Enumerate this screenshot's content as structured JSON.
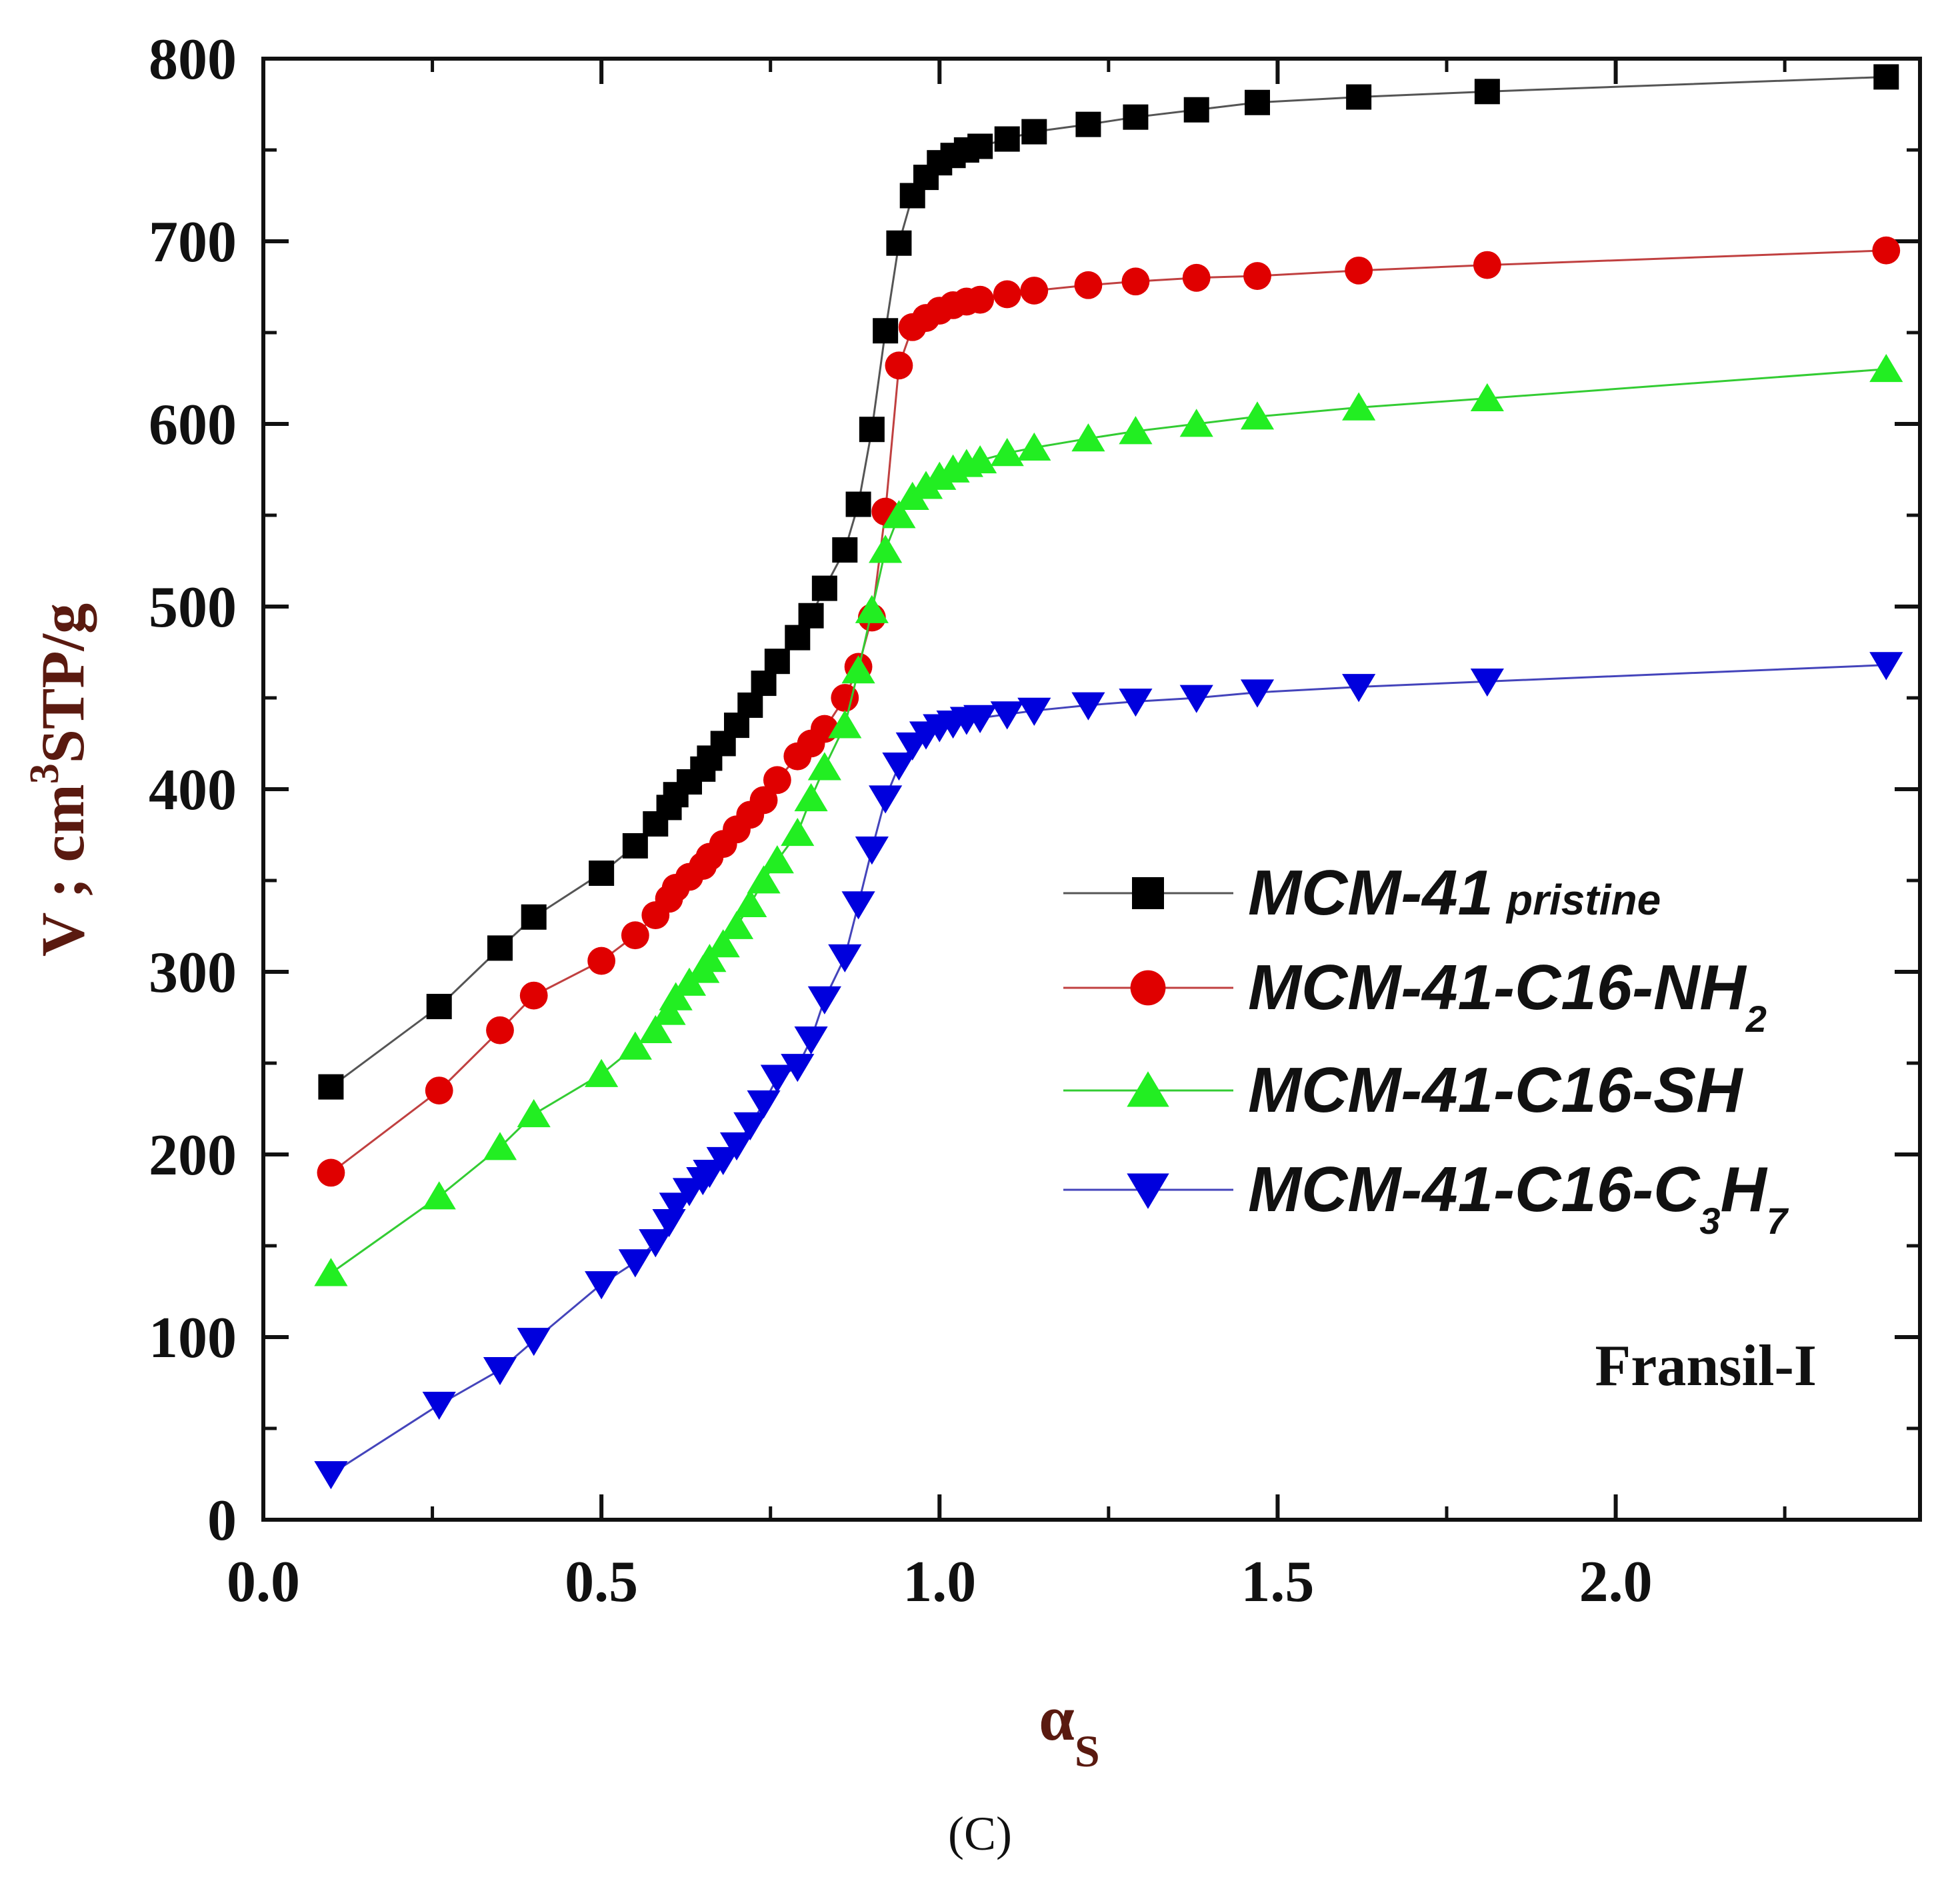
{
  "chart_data": {
    "type": "line",
    "title": "",
    "xlabel": "α",
    "xlabel_sub": "S",
    "ylabel": "V ; cm",
    "ylabel_sup": "3",
    "ylabel_rest": "STP/g",
    "xlim": [
      0.0,
      2.45
    ],
    "ylim": [
      0,
      800
    ],
    "x_ticks": [
      "0.0",
      "0.5",
      "1.0",
      "1.5",
      "2.0"
    ],
    "y_ticks": [
      "0",
      "100",
      "200",
      "300",
      "400",
      "500",
      "600",
      "700",
      "800"
    ],
    "legend_position": "right-middle",
    "annotation": "Fransil-I",
    "caption": "(C)",
    "series": [
      {
        "name": "MCM-41",
        "name_suffix": "pristine",
        "marker": "square",
        "color": "#000000",
        "line_color": "#555555",
        "x": [
          0.1,
          0.26,
          0.35,
          0.4,
          0.5,
          0.55,
          0.58,
          0.6,
          0.61,
          0.63,
          0.65,
          0.66,
          0.68,
          0.7,
          0.72,
          0.74,
          0.76,
          0.79,
          0.81,
          0.83,
          0.86,
          0.88,
          0.9,
          0.92,
          0.94,
          0.96,
          0.98,
          1.0,
          1.02,
          1.04,
          1.06,
          1.1,
          1.14,
          1.22,
          1.29,
          1.38,
          1.47,
          1.62,
          1.81,
          2.4
        ],
        "y": [
          237,
          281,
          313,
          330,
          354,
          369,
          381,
          390,
          397,
          404,
          411,
          417,
          425,
          435,
          446,
          458,
          470,
          483,
          495,
          510,
          531,
          556,
          597,
          651,
          699,
          725,
          735,
          743,
          747,
          750,
          752,
          756,
          760,
          764,
          768,
          772,
          776,
          779,
          782,
          790
        ]
      },
      {
        "name": "MCM-41-C16-NH",
        "name_sub": "2",
        "marker": "circle",
        "color": "#e00000",
        "line_color": "#c04040",
        "x": [
          0.1,
          0.26,
          0.35,
          0.4,
          0.5,
          0.55,
          0.58,
          0.6,
          0.61,
          0.63,
          0.65,
          0.66,
          0.68,
          0.7,
          0.72,
          0.74,
          0.76,
          0.79,
          0.81,
          0.83,
          0.86,
          0.88,
          0.9,
          0.92,
          0.94,
          0.96,
          0.98,
          1.0,
          1.02,
          1.04,
          1.06,
          1.1,
          1.14,
          1.22,
          1.29,
          1.38,
          1.47,
          1.62,
          1.81,
          2.4
        ],
        "y": [
          190,
          235,
          268,
          287,
          306,
          320,
          331,
          340,
          346,
          352,
          358,
          363,
          370,
          378,
          386,
          394,
          405,
          418,
          425,
          433,
          450,
          467,
          494,
          552,
          632,
          653,
          658,
          662,
          665,
          667,
          668,
          671,
          673,
          676,
          678,
          680,
          681,
          684,
          687,
          695
        ]
      },
      {
        "name": "MCM-41-C16-SH",
        "marker": "triangle-up",
        "color": "#22ee22",
        "line_color": "#33cc33",
        "x": [
          0.1,
          0.26,
          0.35,
          0.4,
          0.5,
          0.55,
          0.58,
          0.6,
          0.61,
          0.63,
          0.65,
          0.66,
          0.68,
          0.7,
          0.72,
          0.74,
          0.76,
          0.79,
          0.81,
          0.83,
          0.86,
          0.88,
          0.9,
          0.92,
          0.94,
          0.96,
          0.98,
          1.0,
          1.02,
          1.04,
          1.06,
          1.1,
          1.14,
          1.22,
          1.29,
          1.38,
          1.47,
          1.62,
          1.81,
          2.4
        ],
        "y": [
          135,
          177,
          204,
          222,
          244,
          259,
          268,
          278,
          286,
          294,
          301,
          307,
          315,
          325,
          337,
          350,
          361,
          376,
          395,
          412,
          435,
          465,
          498,
          531,
          550,
          560,
          566,
          571,
          575,
          578,
          580,
          584,
          587,
          592,
          596,
          600,
          604,
          609,
          614,
          630
        ]
      },
      {
        "name": "MCM-41-C16-C",
        "name_sub": "3",
        "name_mid": "H",
        "name_sub2": "7",
        "marker": "triangle-down",
        "color": "#0000dd",
        "line_color": "#4444bb",
        "x": [
          0.1,
          0.26,
          0.35,
          0.4,
          0.5,
          0.55,
          0.58,
          0.6,
          0.61,
          0.63,
          0.65,
          0.66,
          0.68,
          0.7,
          0.72,
          0.74,
          0.76,
          0.79,
          0.81,
          0.83,
          0.86,
          0.88,
          0.9,
          0.92,
          0.94,
          0.96,
          0.98,
          1.0,
          1.02,
          1.04,
          1.06,
          1.1,
          1.14,
          1.22,
          1.29,
          1.38,
          1.47,
          1.62,
          1.81,
          2.4
        ],
        "y": [
          25,
          63,
          82,
          98,
          129,
          141,
          152,
          163,
          172,
          180,
          186,
          190,
          197,
          205,
          216,
          228,
          242,
          248,
          263,
          285,
          308,
          337,
          367,
          395,
          413,
          424,
          430,
          434,
          436,
          438,
          439,
          441,
          443,
          446,
          448,
          450,
          453,
          456,
          459,
          468
        ]
      }
    ]
  }
}
